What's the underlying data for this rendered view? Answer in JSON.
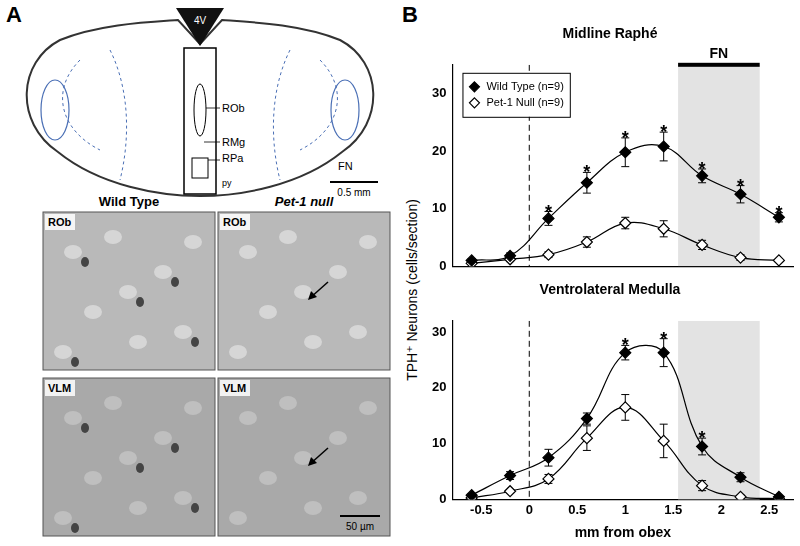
{
  "panel_a": {
    "label": "A",
    "diagram": {
      "ventricle": "4V",
      "nuclei": [
        "ROb",
        "RMg",
        "RPa"
      ],
      "tract": "py",
      "nerve": "FN",
      "scale_bar": "0.5 mm"
    },
    "micrographs": {
      "columns": [
        "Wild Type",
        "Pet-1 null"
      ],
      "rows": [
        "ROb",
        "VLM"
      ],
      "scale_bar": "50 µm"
    }
  },
  "panel_b": {
    "label": "B",
    "y_label": "TPH⁺ Neurons (cells/section)"
  },
  "chart_data": [
    {
      "type": "line",
      "title": "Midline Raphé",
      "x": [
        -0.6,
        -0.2,
        0.2,
        0.6,
        1.0,
        1.4,
        1.8,
        2.2,
        2.6
      ],
      "series": [
        {
          "name": "Wild Type (n=9)",
          "color": "#000000",
          "marker": "diamond",
          "values": [
            1.0,
            1.8,
            8.3,
            14.5,
            19.8,
            20.8,
            15.7,
            12.5,
            8.5
          ],
          "errors": [
            0.3,
            0.5,
            1.2,
            1.8,
            2.5,
            2.5,
            1.2,
            1.5,
            0.8
          ]
        },
        {
          "name": "Pet-1 Null (n=9)",
          "color": "#000000",
          "marker": "open diamond",
          "values": [
            0.5,
            1.2,
            2.0,
            4.2,
            7.5,
            6.5,
            3.7,
            1.5,
            1.0
          ],
          "errors": [
            0.2,
            0.4,
            0.5,
            0.9,
            1.0,
            1.4,
            0.8,
            0.5,
            0.3
          ]
        }
      ],
      "xlim": [
        -0.8,
        2.75
      ],
      "xticks": [
        -0.5,
        0,
        0.5,
        1,
        1.5,
        2,
        2.5
      ],
      "ylim": [
        0,
        35
      ],
      "yticks": [
        0,
        10,
        20,
        30
      ],
      "tick_labels": "y",
      "grid": false,
      "legend": "upper left",
      "significance": {
        "text": "*",
        "x": [
          0.2,
          0.6,
          1.0,
          1.4,
          1.8,
          2.2,
          2.6
        ]
      },
      "shaded_region": {
        "label": "FN",
        "x": [
          1.55,
          2.4
        ]
      },
      "reference_line": {
        "x": 0,
        "line_style": "dashed"
      }
    },
    {
      "type": "line",
      "title": "Ventrolateral Medulla",
      "x_label": "mm from obex",
      "x": [
        -0.6,
        -0.2,
        0.2,
        0.6,
        1.0,
        1.4,
        1.8,
        2.2,
        2.6
      ],
      "series": [
        {
          "name": "Wild Type (n=9)",
          "color": "#000000",
          "marker": "diamond",
          "values": [
            0.8,
            4.3,
            7.5,
            14.5,
            26.3,
            26.3,
            9.5,
            4.0,
            0.5
          ],
          "errors": [
            0.3,
            0.7,
            1.5,
            1.0,
            1.3,
            2.5,
            1.5,
            0.8,
            0.2
          ]
        },
        {
          "name": "Pet-1 Null (n=9)",
          "color": "#000000",
          "marker": "open diamond",
          "values": [
            0.3,
            1.5,
            3.7,
            11.0,
            16.5,
            10.5,
            2.5,
            0.5,
            0.2
          ],
          "errors": [
            0.1,
            0.3,
            0.8,
            2.2,
            2.3,
            3.0,
            0.9,
            0.3,
            0.1
          ]
        }
      ],
      "xlim": [
        -0.8,
        2.75
      ],
      "xticks": [
        -0.5,
        0,
        0.5,
        1,
        1.5,
        2,
        2.5
      ],
      "ylim": [
        0,
        32
      ],
      "yticks": [
        0,
        10,
        20,
        30
      ],
      "grid": false,
      "significance": {
        "text": "*",
        "x": [
          1.0,
          1.4,
          1.8
        ]
      },
      "shaded_region": {
        "x": [
          1.55,
          2.4
        ]
      },
      "reference_line": {
        "x": 0,
        "line_style": "dashed"
      }
    }
  ]
}
